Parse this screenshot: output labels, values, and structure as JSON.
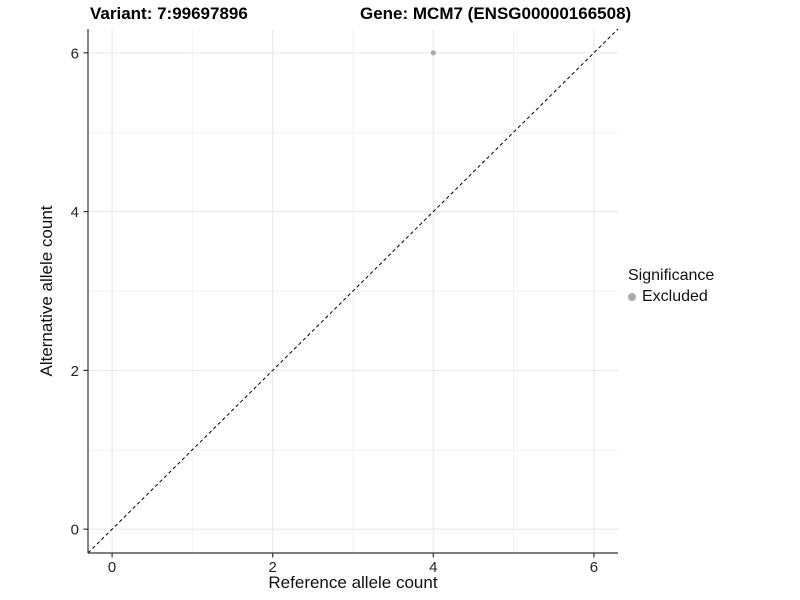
{
  "titles": {
    "variant": "Variant: 7:99697896",
    "gene": "Gene: MCM7 (ENSG00000166508)"
  },
  "legend": {
    "title": "Significance",
    "entries": [
      {
        "label": "Excluded",
        "color": "#aaaaaa"
      }
    ]
  },
  "chart_data": {
    "type": "scatter",
    "title": "Variant: 7:99697896   Gene: MCM7 (ENSG00000166508)",
    "xlabel": "Reference allele count",
    "ylabel": "Alternative allele count",
    "xlim": [
      -0.3,
      6.3
    ],
    "ylim": [
      -0.3,
      6.3
    ],
    "x_major_ticks": [
      0,
      2,
      4,
      6
    ],
    "y_major_ticks": [
      0,
      2,
      4,
      6
    ],
    "x_minor_ticks": [
      1,
      3,
      5
    ],
    "y_minor_ticks": [
      1,
      3,
      5
    ],
    "grid": true,
    "legend_position": "right",
    "series": [
      {
        "name": "Excluded",
        "color": "#aaaaaa",
        "points": [
          {
            "x": 4,
            "y": 6
          }
        ]
      }
    ],
    "abline": {
      "slope": 1,
      "intercept": 0,
      "linetype": "dashed",
      "color": "#000000"
    },
    "colors": {
      "background": "#ffffff",
      "grid_major": "#e6e6e6",
      "grid_minor": "#f2f2f2",
      "axis_line": "#333333",
      "tick_label": "#262626",
      "point": "#aaaaaa"
    }
  }
}
